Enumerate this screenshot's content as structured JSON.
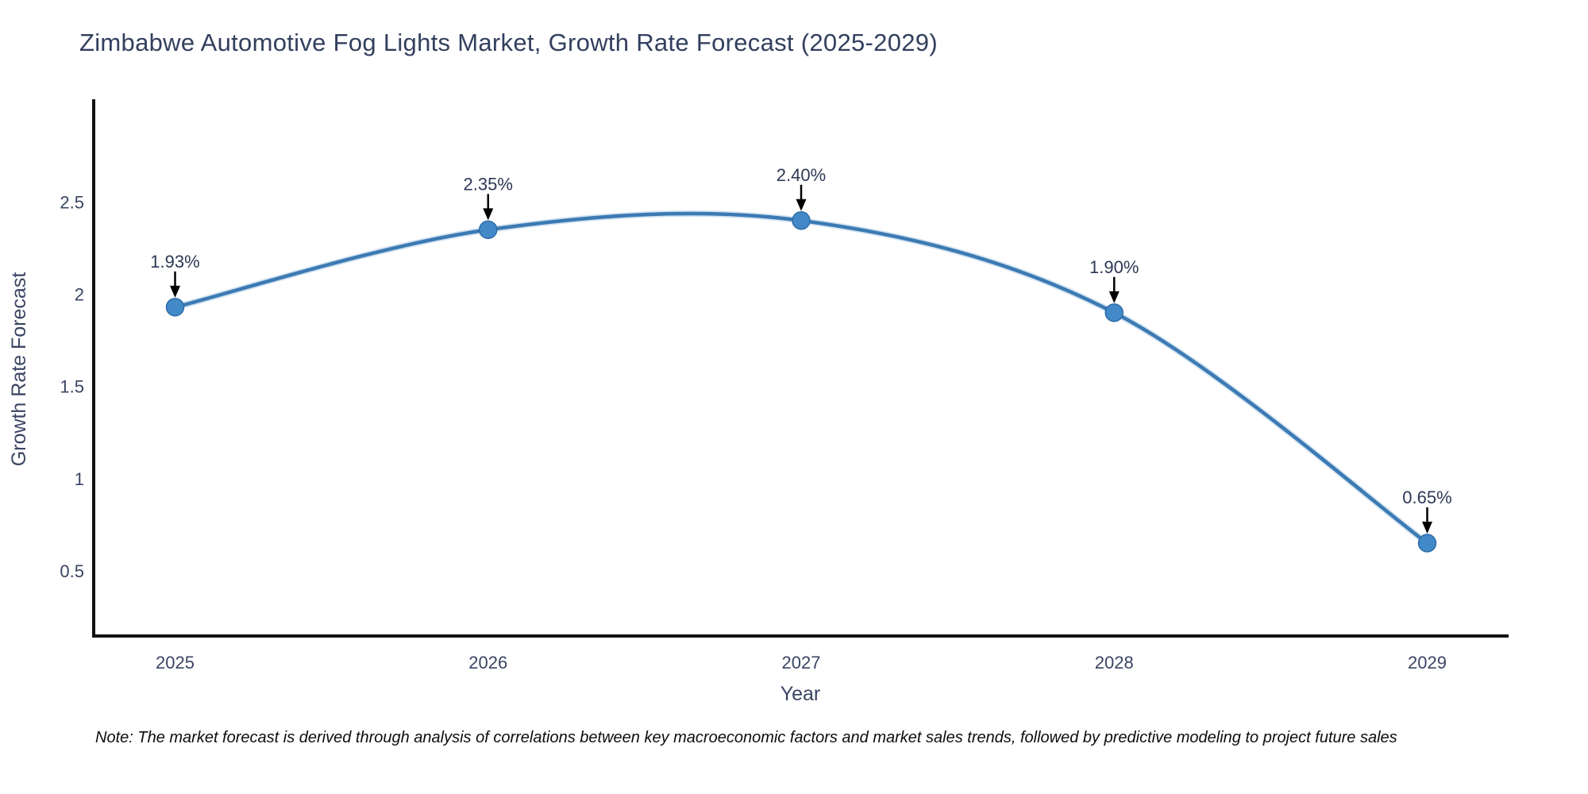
{
  "title": "Zimbabwe Automotive Fog Lights Market, Growth Rate Forecast (2025-2029)",
  "note": "Note: The market forecast is derived through analysis of correlations between key macroeconomic factors and market sales trends, followed by predictive modeling to project future sales",
  "chart_data": {
    "type": "line",
    "title": "Zimbabwe Automotive Fog Lights Market, Growth Rate Forecast (2025-2029)",
    "xlabel": "Year",
    "ylabel": "Growth Rate Forecast",
    "x": [
      2025,
      2026,
      2027,
      2028,
      2029
    ],
    "values": [
      1.93,
      2.35,
      2.4,
      1.9,
      0.65
    ],
    "point_labels": [
      "1.93%",
      "2.35%",
      "2.40%",
      "1.90%",
      "0.65%"
    ],
    "x_ticks": [
      2025,
      2026,
      2027,
      2028,
      2029
    ],
    "x_tick_labels": [
      "2025",
      "2026",
      "2027",
      "2028",
      "2029"
    ],
    "y_ticks": [
      0.5,
      1,
      1.5,
      2,
      2.5
    ],
    "y_tick_labels": [
      "0.5",
      "1",
      "1.5",
      "2",
      "2.5"
    ],
    "xlim": [
      2024.74,
      2029.26
    ],
    "ylim": [
      0.146,
      3.058
    ],
    "grid": false,
    "legend": false,
    "smooth": true,
    "colors": {
      "line": "#3c7ab3",
      "line_halo": "#a9cbe5",
      "marker_fill": "#4289c8",
      "marker_stroke": "#2f6ba8",
      "annotation_text": "#2c3854",
      "arrow": "#000000",
      "axis_text": "#3a4563",
      "title_text": "#323f5e",
      "spine": "#111111",
      "background": "#ffffff"
    }
  }
}
